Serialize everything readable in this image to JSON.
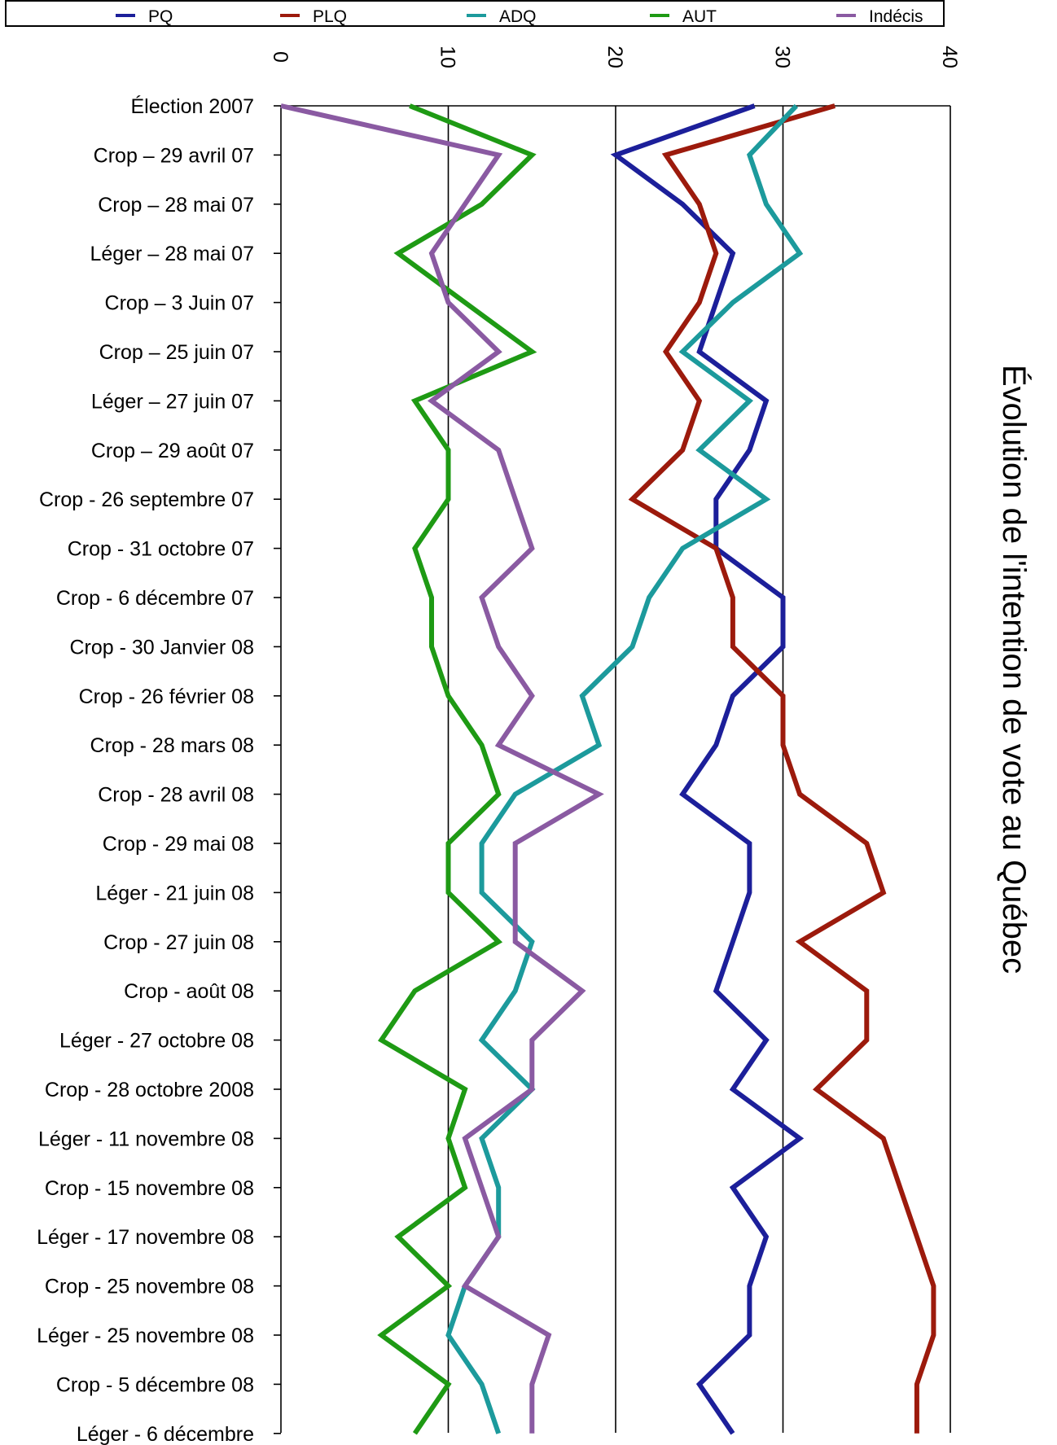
{
  "chart_data": {
    "type": "line",
    "title": "Évolution de l'intention de vote au Québec",
    "xlim": [
      0,
      40
    ],
    "x_ticks": [
      "0",
      "10",
      "20",
      "30",
      "40"
    ],
    "grid": true,
    "legend_position": "top",
    "categories": [
      "Élection 2007",
      "Crop – 29 avril 07",
      "Crop – 28 mai 07",
      "Léger – 28 mai 07",
      "Crop – 3 Juin 07",
      "Crop – 25 juin 07",
      "Léger – 27 juin 07",
      "Crop – 29 août 07",
      "Crop - 26 septembre 07",
      "Crop - 31 octobre 07",
      "Crop - 6 décembre 07",
      "Crop - 30 Janvier 08",
      "Crop - 26 février 08",
      "Crop - 28 mars 08",
      "Crop - 28 avril 08",
      "Crop - 29 mai 08",
      "Léger - 21 juin 08",
      "Crop - 27 juin 08",
      "Crop - août 08",
      "Léger - 27 octobre 08",
      "Crop - 28 octobre 2008",
      "Léger - 11 novembre 08",
      "Crop - 15 novembre 08",
      "Léger - 17 novembre 08",
      "Crop - 25 novembre 08",
      "Léger - 25 novembre 08",
      "Crop - 5 décembre 08",
      "Léger - 6 décembre"
    ],
    "series": [
      {
        "name": "PQ",
        "color": "#1c1f9a",
        "values": [
          28.3,
          20,
          24,
          27,
          26,
          25,
          29,
          28,
          26,
          26,
          30,
          30,
          27,
          26,
          24,
          28,
          28,
          27,
          26,
          29,
          27,
          31,
          27,
          29,
          28,
          28,
          25,
          27
        ]
      },
      {
        "name": "PLQ",
        "color": "#9c1a0c",
        "values": [
          33.1,
          23,
          25,
          26,
          25,
          23,
          25,
          24,
          21,
          26,
          27,
          27,
          30,
          30,
          31,
          35,
          36,
          31,
          35,
          35,
          32,
          36,
          37,
          38,
          39,
          39,
          38,
          38
        ]
      },
      {
        "name": "ADQ",
        "color": "#1c9a9c",
        "values": [
          30.8,
          28,
          29,
          31,
          27,
          24,
          28,
          25,
          29,
          24,
          22,
          21,
          18,
          19,
          14,
          12,
          12,
          15,
          14,
          12,
          15,
          12,
          13,
          13,
          11,
          10,
          12,
          13
        ]
      },
      {
        "name": "AUT",
        "color": "#1e9a14",
        "values": [
          7.7,
          15,
          12,
          7,
          11,
          15,
          8,
          10,
          10,
          8,
          9,
          9,
          10,
          12,
          13,
          10,
          10,
          13,
          8,
          6,
          11,
          10,
          11,
          7,
          10,
          6,
          10,
          8
        ]
      },
      {
        "name": "Indécis",
        "color": "#8a5aa2",
        "values": [
          0,
          13,
          11,
          9,
          10,
          13,
          9,
          13,
          14,
          15,
          12,
          13,
          15,
          13,
          19,
          14,
          14,
          14,
          18,
          15,
          15,
          11,
          12,
          13,
          11,
          16,
          15,
          15
        ]
      }
    ]
  }
}
